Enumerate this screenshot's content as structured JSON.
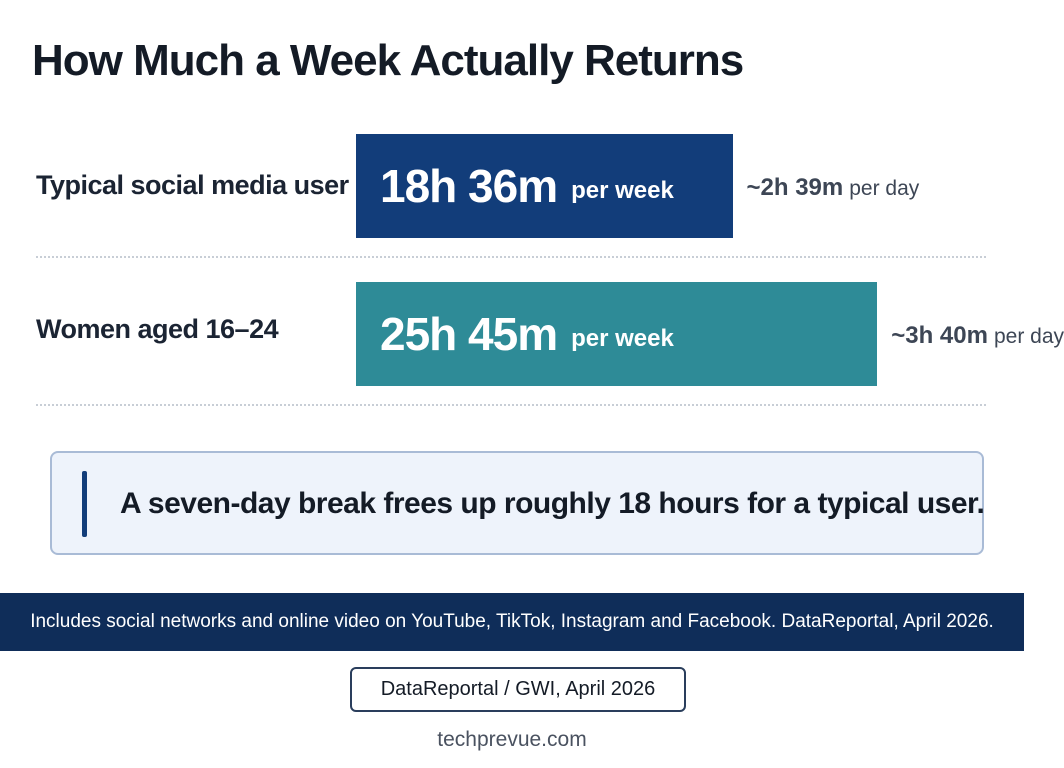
{
  "title": "How Much a Week Actually Returns",
  "rows": [
    {
      "label": "Typical social media user",
      "value_text": "18h 36m",
      "unit_text": "per week",
      "per_day_value": "~2h 39m",
      "per_day_unit": "per day",
      "color": "#123d7a"
    },
    {
      "label": "Women aged 16–24",
      "value_text": "25h 45m",
      "unit_text": "per week",
      "per_day_value": "~3h 40m",
      "per_day_unit": "per day",
      "color": "#2e8b97"
    }
  ],
  "callout": {
    "text": "A seven-day break frees up roughly 18 hours for a typical user."
  },
  "footer": {
    "note": "Includes social networks and online video on YouTube, TikTok, Instagram and Facebook. DataReportal, April 2026.",
    "source": "DataReportal / GWI, April 2026",
    "site": "techprevue.com"
  },
  "chart_data": {
    "type": "bar",
    "orientation": "horizontal",
    "title": "How Much a Week Actually Returns",
    "categories": [
      "Typical social media user",
      "Women aged 16–24"
    ],
    "values": [
      18.6,
      25.75
    ],
    "value_labels": [
      "18h 36m per week",
      "25h 45m per week"
    ],
    "annotations": [
      "~2h 39m per day",
      "~3h 40m per day"
    ],
    "xlim": [
      0,
      33
    ],
    "grid": false,
    "legend": "none"
  }
}
